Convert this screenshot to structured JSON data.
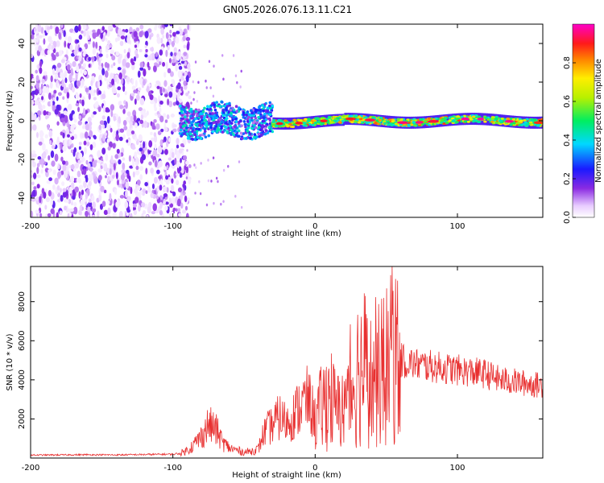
{
  "title": "GN05.2026.076.13.11.C21",
  "colors": {
    "background": "#ffffff",
    "frame": "#000000",
    "snr_line": "#e83030"
  },
  "chart_data": [
    {
      "type": "heatmap",
      "title": "GN05.2026.076.13.11.C21",
      "xlabel": "Height of straight line (km)",
      "ylabel": "Frequency (Hz)",
      "xlim": [
        -200,
        160
      ],
      "ylim": [
        -50,
        50
      ],
      "xticks": [
        -200,
        -100,
        0,
        100
      ],
      "yticks": [
        -40,
        -20,
        0,
        20,
        40
      ],
      "colorbar": {
        "label": "Normalized spectral amplitude",
        "range": [
          0.0,
          1.0
        ],
        "ticks": [
          "0.0",
          "0.2",
          "0.4",
          "0.6",
          "0.8"
        ],
        "tick_values": [
          0.0,
          0.2,
          0.4,
          0.6,
          0.8
        ],
        "colormap": "rainbow (white-violet-blue-cyan-green-yellow-red-magenta)"
      },
      "regions": [
        {
          "x_range": [
            -200,
            -88
          ],
          "description": "broadband noise",
          "freq_range": [
            -50,
            50
          ],
          "amplitude": [
            0.02,
            0.2
          ]
        },
        {
          "x_range": [
            -95,
            -30
          ],
          "description": "emerging signal",
          "freq_center": 0,
          "freq_spread": 8,
          "amplitude": [
            0.1,
            0.45
          ]
        },
        {
          "x_range": [
            -30,
            160
          ],
          "description": "narrow carrier line",
          "freq_center": 0,
          "freq_spread": 2.5,
          "amplitude": [
            0.4,
            1.0
          ]
        }
      ]
    },
    {
      "type": "line",
      "xlabel": "Height of straight line (km)",
      "ylabel": "SNR (10 * v/v)",
      "xlim": [
        -200,
        160
      ],
      "ylim": [
        0,
        9800
      ],
      "xticks": [
        -200,
        -100,
        0,
        100
      ],
      "yticks": [
        2000,
        4000,
        6000,
        8000
      ],
      "series": [
        {
          "name": "SNR",
          "x": [
            -200,
            -180,
            -160,
            -140,
            -120,
            -100,
            -95,
            -90,
            -85,
            -80,
            -75,
            -70,
            -65,
            -60,
            -55,
            -50,
            -45,
            -40,
            -37,
            -35,
            -30,
            -25,
            -20,
            -15,
            -10,
            -5,
            0,
            5,
            10,
            15,
            20,
            25,
            30,
            35,
            40,
            45,
            50,
            55,
            60,
            65,
            70,
            80,
            90,
            100,
            110,
            120,
            130,
            140,
            150,
            160
          ],
          "y": [
            150,
            160,
            170,
            160,
            180,
            200,
            230,
            400,
            700,
            1100,
            1700,
            1500,
            800,
            500,
            400,
            300,
            350,
            450,
            1100,
            1400,
            1700,
            2100,
            1800,
            2200,
            2700,
            3000,
            2000,
            2600,
            3300,
            2300,
            2700,
            3300,
            4500,
            4700,
            3800,
            4200,
            4600,
            5200,
            5000,
            4900,
            4800,
            4700,
            4600,
            4500,
            4400,
            4300,
            4000,
            3900,
            3800,
            3700
          ],
          "max_spike": {
            "x": 54,
            "y": 9800
          }
        }
      ]
    }
  ]
}
